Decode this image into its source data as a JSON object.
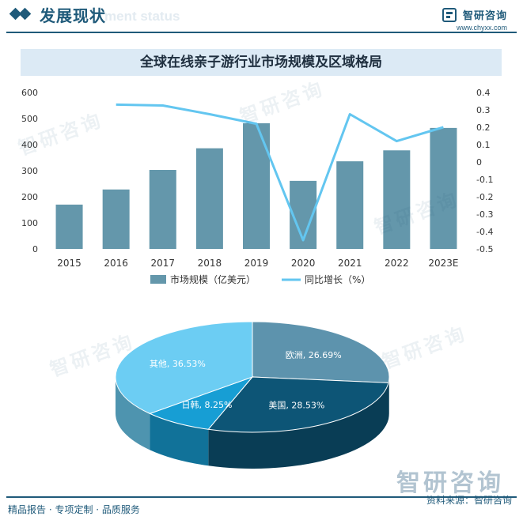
{
  "header": {
    "title": "发展现状",
    "subtitle": "ment status",
    "brand_name": "智研咨询",
    "brand_url": "www.chyxx.com"
  },
  "colors": {
    "bar": "#6497ab",
    "line": "#63c6f0",
    "brand": "#1f5a7a",
    "pie_europe": "#5d93ad",
    "pie_usa": "#0d5576",
    "pie_japan_korea": "#179ed4",
    "pie_other": "#6ccdf3"
  },
  "watermark_text": "智研咨询",
  "chart_data": [
    {
      "type": "bar",
      "title": "全球在线亲子游行业市场规模及区域格局",
      "categories": [
        "2015",
        "2016",
        "2017",
        "2018",
        "2019",
        "2020",
        "2021",
        "2022",
        "2023E"
      ],
      "series": [
        {
          "name": "市场规模（亿美元）",
          "type": "bar",
          "axis": "left",
          "values": [
            170,
            228,
            303,
            386,
            482,
            261,
            336,
            378,
            464
          ]
        },
        {
          "name": "同比增长（%）",
          "type": "line",
          "axis": "right",
          "values": [
            null,
            0.33,
            0.325,
            0.275,
            0.22,
            -0.45,
            0.275,
            0.12,
            0.2
          ]
        }
      ],
      "ylim_left": [
        0,
        600
      ],
      "yticks_left": [
        "0",
        "100",
        "200",
        "300",
        "400",
        "500",
        "600"
      ],
      "ylim_right": [
        -0.5,
        0.4
      ],
      "yticks_right": [
        "-0.5",
        "-0.4",
        "-0.3",
        "-0.2",
        "-0.1",
        "0",
        "0.1",
        "0.2",
        "0.3",
        "0.4"
      ],
      "legend": "bottom"
    },
    {
      "type": "pie",
      "style": "3d",
      "slices": [
        {
          "label": "欧洲, 26.69%",
          "name": "欧洲",
          "value": 26.69
        },
        {
          "label": "美国, 28.53%",
          "name": "美国",
          "value": 28.53
        },
        {
          "label": "日韩, 8.25%",
          "name": "日韩",
          "value": 8.25
        },
        {
          "label": "其他, 36.53%",
          "name": "其他",
          "value": 36.53
        }
      ]
    }
  ],
  "footer": {
    "left": "精品报告 · 专项定制 · 品质服务",
    "right": "资料来源：智研咨询",
    "logo": "智研咨询"
  }
}
